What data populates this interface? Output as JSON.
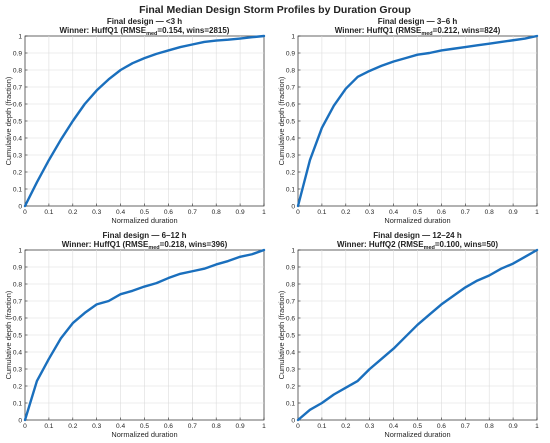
{
  "figure": {
    "title": "Final Median Design Storm Profiles by Duration Group",
    "line_color": "#1a6fbd"
  },
  "chart_data": [
    {
      "type": "line",
      "title": "Final design — <3 h",
      "subtitle_prefix": "Winner: HuffQ1 (RMSE",
      "subtitle_sub": "med",
      "subtitle_suffix": "=0.154, wins=2815)",
      "xlabel": "Normalized duration",
      "ylabel": "Cumulative depth (fraction)",
      "xlim": [
        0,
        1
      ],
      "ylim": [
        0,
        1
      ],
      "grid": true,
      "x": [
        0,
        0.05,
        0.1,
        0.15,
        0.2,
        0.25,
        0.3,
        0.35,
        0.4,
        0.45,
        0.5,
        0.55,
        0.6,
        0.65,
        0.7,
        0.75,
        0.8,
        0.85,
        0.9,
        0.95,
        1
      ],
      "y": [
        0,
        0.14,
        0.27,
        0.39,
        0.5,
        0.6,
        0.68,
        0.745,
        0.8,
        0.84,
        0.87,
        0.895,
        0.915,
        0.935,
        0.95,
        0.965,
        0.973,
        0.978,
        0.985,
        0.993,
        1
      ]
    },
    {
      "type": "line",
      "title": "Final design — 3–6 h",
      "subtitle_prefix": "Winner: HuffQ1 (RMSE",
      "subtitle_sub": "med",
      "subtitle_suffix": "=0.212, wins=824)",
      "xlabel": "Normalized duration",
      "ylabel": "Cumulative depth (fraction)",
      "xlim": [
        0,
        1
      ],
      "ylim": [
        0,
        1
      ],
      "grid": true,
      "x": [
        0,
        0.05,
        0.1,
        0.15,
        0.2,
        0.25,
        0.3,
        0.35,
        0.4,
        0.45,
        0.5,
        0.55,
        0.6,
        0.65,
        0.7,
        0.75,
        0.8,
        0.85,
        0.9,
        0.95,
        1
      ],
      "y": [
        0,
        0.27,
        0.46,
        0.59,
        0.69,
        0.76,
        0.795,
        0.825,
        0.85,
        0.87,
        0.89,
        0.9,
        0.915,
        0.925,
        0.935,
        0.945,
        0.955,
        0.965,
        0.975,
        0.985,
        1
      ]
    },
    {
      "type": "line",
      "title": "Final design — 6–12 h",
      "subtitle_prefix": "Winner: HuffQ1 (RMSE",
      "subtitle_sub": "med",
      "subtitle_suffix": "=0.218, wins=396)",
      "xlabel": "Normalized duration",
      "ylabel": "Cumulative depth (fraction)",
      "xlim": [
        0,
        1
      ],
      "ylim": [
        0,
        1
      ],
      "grid": true,
      "x": [
        0,
        0.05,
        0.1,
        0.15,
        0.2,
        0.25,
        0.3,
        0.35,
        0.4,
        0.45,
        0.5,
        0.55,
        0.6,
        0.65,
        0.7,
        0.75,
        0.8,
        0.85,
        0.9,
        0.95,
        1
      ],
      "y": [
        0,
        0.23,
        0.36,
        0.48,
        0.57,
        0.63,
        0.68,
        0.7,
        0.74,
        0.76,
        0.785,
        0.805,
        0.835,
        0.86,
        0.875,
        0.89,
        0.915,
        0.935,
        0.96,
        0.975,
        1
      ]
    },
    {
      "type": "line",
      "title": "Final design — 12–24 h",
      "subtitle_prefix": "Winner: HuffQ2 (RMSE",
      "subtitle_sub": "med",
      "subtitle_suffix": "=0.100, wins=50)",
      "xlabel": "Normalized duration",
      "ylabel": "Cumulative depth (fraction)",
      "xlim": [
        0,
        1
      ],
      "ylim": [
        0,
        1
      ],
      "grid": true,
      "x": [
        0,
        0.05,
        0.1,
        0.15,
        0.2,
        0.25,
        0.3,
        0.35,
        0.4,
        0.45,
        0.5,
        0.55,
        0.6,
        0.65,
        0.7,
        0.75,
        0.8,
        0.85,
        0.9,
        0.95,
        1
      ],
      "y": [
        0,
        0.06,
        0.1,
        0.15,
        0.19,
        0.23,
        0.3,
        0.36,
        0.42,
        0.49,
        0.56,
        0.62,
        0.68,
        0.73,
        0.78,
        0.82,
        0.85,
        0.89,
        0.92,
        0.96,
        1
      ]
    }
  ]
}
